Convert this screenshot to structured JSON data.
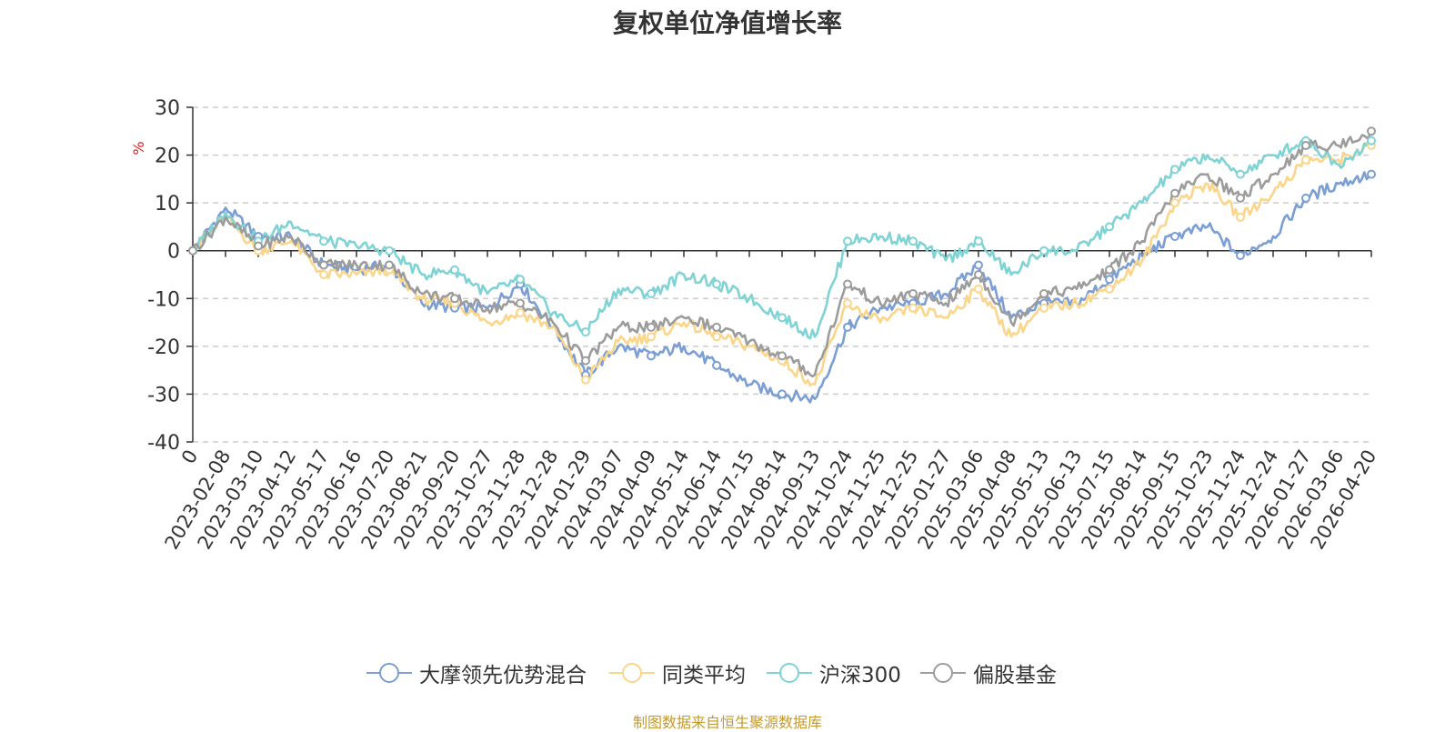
{
  "chart_data": {
    "type": "line",
    "title": "复权单位净值增长率",
    "ylabel": "%",
    "xlabel": "",
    "ylim": [
      -40,
      30
    ],
    "yticks": [
      30,
      20,
      10,
      0,
      -10,
      -20,
      -30,
      -40
    ],
    "categories": [
      "0",
      "2023-02-08",
      "2023-03-10",
      "2023-04-12",
      "2023-05-17",
      "2023-06-16",
      "2023-07-20",
      "2023-08-21",
      "2023-09-20",
      "2023-10-27",
      "2023-11-28",
      "2023-12-28",
      "2024-01-29",
      "2024-03-07",
      "2024-04-09",
      "2024-05-14",
      "2024-06-14",
      "2024-07-15",
      "2024-08-14",
      "2024-09-13",
      "2024-10-24",
      "2024-11-25",
      "2024-12-25",
      "2025-01-27",
      "2025-03-06",
      "2025-04-08",
      "2025-05-13",
      "2025-06-13",
      "2025-07-15",
      "2025-08-14",
      "2025-09-15",
      "2025-10-23",
      "2025-11-24",
      "2025-12-24",
      "2026-01-27",
      "2026-03-06",
      "2026-04-20"
    ],
    "grid": true,
    "legend_position": "bottom",
    "series": [
      {
        "name": "大摩领先优势混合",
        "color": "#7b9ed4",
        "values": [
          0,
          9,
          3,
          3,
          -3,
          -4,
          -3,
          -11,
          -12,
          -12,
          -7,
          -16,
          -26,
          -20,
          -22,
          -20,
          -24,
          -28,
          -30,
          -31,
          -16,
          -12,
          -11,
          -9,
          -3,
          -14,
          -11,
          -11,
          -6,
          -1,
          3,
          5,
          -1,
          3,
          11,
          14,
          16
        ]
      },
      {
        "name": "同类平均",
        "color": "#fbd68a",
        "values": [
          0,
          7,
          0,
          2,
          -5,
          -5,
          -4,
          -10,
          -11,
          -15,
          -13,
          -16,
          -27,
          -19,
          -18,
          -15,
          -18,
          -20,
          -23,
          -28,
          -11,
          -15,
          -12,
          -14,
          -8,
          -18,
          -12,
          -11,
          -8,
          -2,
          10,
          14,
          7,
          12,
          19,
          19,
          22
        ]
      },
      {
        "name": "沪深300",
        "color": "#7fd3d5",
        "values": [
          0,
          8,
          2,
          6,
          2,
          1,
          0,
          -5,
          -4,
          -9,
          -6,
          -13,
          -17,
          -8,
          -9,
          -5,
          -7,
          -10,
          -14,
          -18,
          2,
          3,
          2,
          -2,
          2,
          -5,
          0,
          0,
          5,
          10,
          17,
          20,
          16,
          20,
          23,
          18,
          23
        ]
      },
      {
        "name": "偏股基金",
        "color": "#9c9c9c",
        "values": [
          0,
          7,
          1,
          3,
          -3,
          -3,
          -3,
          -9,
          -10,
          -12,
          -11,
          -15,
          -23,
          -16,
          -16,
          -14,
          -16,
          -19,
          -22,
          -26,
          -7,
          -11,
          -9,
          -11,
          -5,
          -15,
          -9,
          -8,
          -4,
          2,
          12,
          16,
          11,
          16,
          22,
          22,
          25
        ]
      }
    ]
  },
  "source_note": {
    "text": "制图数据来自恒生聚源数据库",
    "color": "#c49a2c"
  }
}
